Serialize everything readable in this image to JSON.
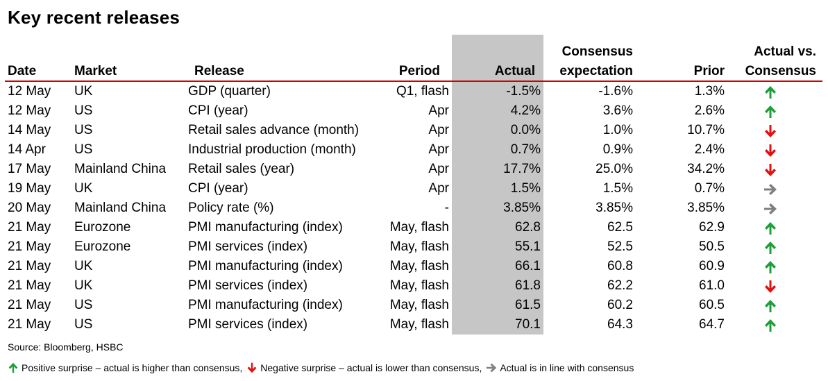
{
  "title": "Key recent releases",
  "headers": {
    "date": "Date",
    "market": "Market",
    "release": "Release",
    "period": "Period",
    "actual": "Actual",
    "consensus_line1": "Consensus",
    "consensus_line2": "expectation",
    "prior": "Prior",
    "vs_line1": "Actual vs.",
    "vs_line2": "Consensus"
  },
  "colors": {
    "up": "#1f9e3a",
    "down": "#e0110f",
    "flat": "#7f7f7f",
    "rule": "#d40000",
    "actual_column_bg": "#c6c6c6"
  },
  "rows": [
    {
      "date": "12 May",
      "market": "UK",
      "release": "GDP (quarter)",
      "period": "Q1, flash",
      "actual": "-1.5%",
      "consensus": "-1.6%",
      "prior": "1.3%",
      "surprise": "up"
    },
    {
      "date": "12 May",
      "market": "US",
      "release": "CPI (year)",
      "period": "Apr",
      "actual": "4.2%",
      "consensus": "3.6%",
      "prior": "2.6%",
      "surprise": "up"
    },
    {
      "date": "14 May",
      "market": "US",
      "release": "Retail sales advance (month)",
      "period": "Apr",
      "actual": "0.0%",
      "consensus": "1.0%",
      "prior": "10.7%",
      "surprise": "down"
    },
    {
      "date": "14 Apr",
      "market": "US",
      "release": "Industrial production (month)",
      "period": "Apr",
      "actual": "0.7%",
      "consensus": "0.9%",
      "prior": "2.4%",
      "surprise": "down"
    },
    {
      "date": "17 May",
      "market": "Mainland China",
      "release": "Retail sales (year)",
      "period": "Apr",
      "actual": "17.7%",
      "consensus": "25.0%",
      "prior": "34.2%",
      "surprise": "down"
    },
    {
      "date": "19 May",
      "market": "UK",
      "release": "CPI (year)",
      "period": "Apr",
      "actual": "1.5%",
      "consensus": "1.5%",
      "prior": "0.7%",
      "surprise": "flat"
    },
    {
      "date": "20 May",
      "market": "Mainland China",
      "release": "Policy rate (%)",
      "period": "-",
      "actual": "3.85%",
      "consensus": "3.85%",
      "prior": "3.85%",
      "surprise": "flat"
    },
    {
      "date": "21 May",
      "market": "Eurozone",
      "release": "PMI manufacturing (index)",
      "period": "May, flash",
      "actual": "62.8",
      "consensus": "62.5",
      "prior": "62.9",
      "surprise": "up"
    },
    {
      "date": "21 May",
      "market": "Eurozone",
      "release": "PMI services (index)",
      "period": "May, flash",
      "actual": "55.1",
      "consensus": "52.5",
      "prior": "50.5",
      "surprise": "up"
    },
    {
      "date": "21 May",
      "market": "UK",
      "release": "PMI manufacturing (index)",
      "period": "May, flash",
      "actual": "66.1",
      "consensus": "60.8",
      "prior": "60.9",
      "surprise": "up"
    },
    {
      "date": "21 May",
      "market": "UK",
      "release": "PMI services (index)",
      "period": "May, flash",
      "actual": "61.8",
      "consensus": "62.2",
      "prior": "61.0",
      "surprise": "down"
    },
    {
      "date": "21 May",
      "market": "US",
      "release": "PMI manufacturing (index)",
      "period": "May, flash",
      "actual": "61.5",
      "consensus": "60.2",
      "prior": "60.5",
      "surprise": "up"
    },
    {
      "date": "21 May",
      "market": "US",
      "release": "PMI services (index)",
      "period": "May, flash",
      "actual": "70.1",
      "consensus": "64.3",
      "prior": "64.7",
      "surprise": "up"
    }
  ],
  "source": "Source: Bloomberg, HSBC",
  "legend": [
    {
      "icon": "arrow-up-icon",
      "surprise": "up",
      "text": "Positive surprise – actual is higher than consensus,"
    },
    {
      "icon": "arrow-down-icon",
      "surprise": "down",
      "text": "Negative surprise – actual is lower than consensus,"
    },
    {
      "icon": "arrow-right-icon",
      "surprise": "flat",
      "text": "Actual is in line with consensus"
    }
  ]
}
